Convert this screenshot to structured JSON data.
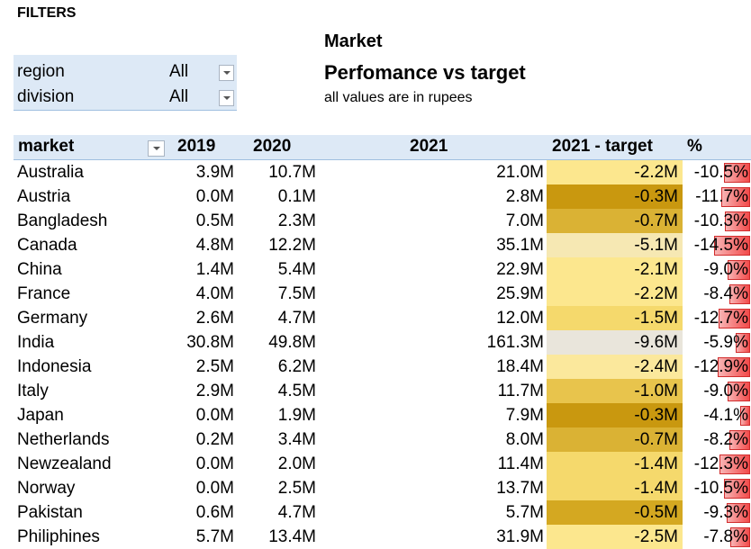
{
  "filters": {
    "title": "FILTERS",
    "items": [
      {
        "label": "region",
        "value": "All"
      },
      {
        "label": "division",
        "value": "All"
      }
    ]
  },
  "report": {
    "title": "Market",
    "subtitle": "Perfomance vs target",
    "note": "all values are in rupees"
  },
  "table": {
    "headers": {
      "market": "market",
      "y2019": "2019",
      "y2020": "2020",
      "y2021": "2021",
      "target": "2021 - target",
      "pct": "%"
    },
    "rows": [
      {
        "market": "Australia",
        "y2019": "3.9M",
        "y2020": "10.7M",
        "y2021": "21.0M",
        "target": "-2.2M",
        "pct": "-10.5%",
        "pct_value": -10.5,
        "shade": "#fce78e"
      },
      {
        "market": "Austria",
        "y2019": "0.0M",
        "y2020": "0.1M",
        "y2021": "2.8M",
        "target": "-0.3M",
        "pct": "-11.7%",
        "pct_value": -11.7,
        "shade": "#c9980f"
      },
      {
        "market": "Bangladesh",
        "y2019": "0.5M",
        "y2020": "2.3M",
        "y2021": "7.0M",
        "target": "-0.7M",
        "pct": "-10.3%",
        "pct_value": -10.3,
        "shade": "#dab234"
      },
      {
        "market": "Canada",
        "y2019": "4.8M",
        "y2020": "12.2M",
        "y2021": "35.1M",
        "target": "-5.1M",
        "pct": "-14.5%",
        "pct_value": -14.5,
        "shade": "#f6e8b3"
      },
      {
        "market": "China",
        "y2019": "1.4M",
        "y2020": "5.4M",
        "y2021": "22.9M",
        "target": "-2.1M",
        "pct": "-9.0%",
        "pct_value": -9.0,
        "shade": "#fce78e"
      },
      {
        "market": "France",
        "y2019": "4.0M",
        "y2020": "7.5M",
        "y2021": "25.9M",
        "target": "-2.2M",
        "pct": "-8.4%",
        "pct_value": -8.4,
        "shade": "#fce78e"
      },
      {
        "market": "Germany",
        "y2019": "2.6M",
        "y2020": "4.7M",
        "y2021": "12.0M",
        "target": "-1.5M",
        "pct": "-12.7%",
        "pct_value": -12.7,
        "shade": "#f5d96c"
      },
      {
        "market": "India",
        "y2019": "30.8M",
        "y2020": "49.8M",
        "y2021": "161.3M",
        "target": "-9.6M",
        "pct": "-5.9%",
        "pct_value": -5.9,
        "shade": "#e9e5db"
      },
      {
        "market": "Indonesia",
        "y2019": "2.5M",
        "y2020": "6.2M",
        "y2021": "18.4M",
        "target": "-2.4M",
        "pct": "-12.9%",
        "pct_value": -12.9,
        "shade": "#fbe89c"
      },
      {
        "market": "Italy",
        "y2019": "2.9M",
        "y2020": "4.5M",
        "y2021": "11.7M",
        "target": "-1.0M",
        "pct": "-9.0%",
        "pct_value": -9.0,
        "shade": "#e8c44c"
      },
      {
        "market": "Japan",
        "y2019": "0.0M",
        "y2020": "1.9M",
        "y2021": "7.9M",
        "target": "-0.3M",
        "pct": "-4.1%",
        "pct_value": -4.1,
        "shade": "#c9980f"
      },
      {
        "market": "Netherlands",
        "y2019": "0.2M",
        "y2020": "3.4M",
        "y2021": "8.0M",
        "target": "-0.7M",
        "pct": "-8.2%",
        "pct_value": -8.2,
        "shade": "#dab234"
      },
      {
        "market": "Newzealand",
        "y2019": "0.0M",
        "y2020": "2.0M",
        "y2021": "11.4M",
        "target": "-1.4M",
        "pct": "-12.3%",
        "pct_value": -12.3,
        "shade": "#f5d96c"
      },
      {
        "market": "Norway",
        "y2019": "0.0M",
        "y2020": "2.5M",
        "y2021": "13.7M",
        "target": "-1.4M",
        "pct": "-10.5%",
        "pct_value": -10.5,
        "shade": "#f5d96c"
      },
      {
        "market": "Pakistan",
        "y2019": "0.6M",
        "y2020": "4.7M",
        "y2021": "5.7M",
        "target": "-0.5M",
        "pct": "-9.3%",
        "pct_value": -9.3,
        "shade": "#d4a821"
      },
      {
        "market": "Philiphines",
        "y2019": "5.7M",
        "y2020": "13.4M",
        "y2021": "31.9M",
        "target": "-2.5M",
        "pct": "-7.8%",
        "pct_value": -7.8,
        "shade": "#fce78e"
      }
    ]
  }
}
